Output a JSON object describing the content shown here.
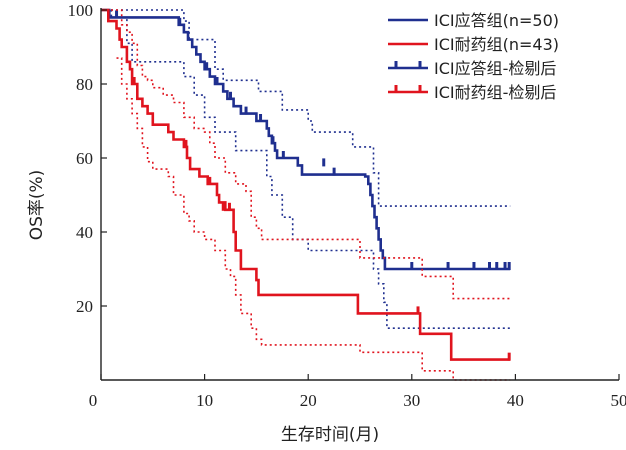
{
  "chart_data": {
    "type": "line",
    "subtype": "kaplan-meier",
    "xlabel": "生存时间(月)",
    "ylabel": "OS率(%)",
    "xlim": [
      0,
      50
    ],
    "ylim": [
      0,
      100
    ],
    "xticks": [
      0,
      10,
      20,
      30,
      40,
      50
    ],
    "yticks": [
      20,
      40,
      60,
      80,
      100
    ],
    "legend_position": "top-right",
    "legend": [
      {
        "label": "ICI应答组(n=50)",
        "color": "#1f2f8f",
        "style": "line"
      },
      {
        "label": "ICI耐药组(n=43)",
        "color": "#e0141e",
        "style": "line"
      },
      {
        "label": "ICI应答组-检剔后",
        "color": "#1f2f8f",
        "style": "censor"
      },
      {
        "label": "ICI耐药组-检剔后",
        "color": "#e0141e",
        "style": "censor"
      }
    ],
    "series": [
      {
        "name": "ICI应答组",
        "color": "#1f2f8f",
        "steps": [
          [
            0,
            100
          ],
          [
            0.8,
            98
          ],
          [
            7.5,
            96
          ],
          [
            8,
            94
          ],
          [
            8.4,
            92
          ],
          [
            8.8,
            90
          ],
          [
            9.2,
            88
          ],
          [
            9.6,
            86
          ],
          [
            10,
            84
          ],
          [
            10.5,
            82
          ],
          [
            11,
            80
          ],
          [
            11.8,
            78
          ],
          [
            12.2,
            76
          ],
          [
            12.8,
            74
          ],
          [
            13.5,
            72
          ],
          [
            15,
            70
          ],
          [
            16,
            68
          ],
          [
            16.2,
            66
          ],
          [
            16.5,
            64
          ],
          [
            16.8,
            62
          ],
          [
            17,
            60
          ],
          [
            19,
            58
          ],
          [
            19.4,
            55.5
          ],
          [
            25.5,
            55
          ],
          [
            25.8,
            53
          ],
          [
            26,
            50
          ],
          [
            26.2,
            47
          ],
          [
            26.4,
            44
          ],
          [
            26.6,
            41
          ],
          [
            26.8,
            38
          ],
          [
            27,
            35
          ],
          [
            27.2,
            33
          ],
          [
            27.4,
            30
          ],
          [
            39.5,
            30
          ]
        ],
        "censors": [
          [
            1.5,
            98
          ],
          [
            7.6,
            96
          ],
          [
            10.2,
            84
          ],
          [
            11.2,
            80
          ],
          [
            12.5,
            76
          ],
          [
            14,
            72
          ],
          [
            15.4,
            70
          ],
          [
            16.6,
            64
          ],
          [
            17.6,
            60
          ],
          [
            21.5,
            58
          ],
          [
            22.5,
            55.5
          ],
          [
            30,
            30
          ],
          [
            33.5,
            30
          ],
          [
            36,
            30
          ],
          [
            37.5,
            30
          ],
          [
            38.2,
            30
          ],
          [
            39,
            30
          ],
          [
            39.4,
            30
          ]
        ],
        "ci_upper": [
          [
            0,
            100
          ],
          [
            7.5,
            100
          ],
          [
            8,
            97
          ],
          [
            8.5,
            92
          ],
          [
            11,
            84
          ],
          [
            11.8,
            81
          ],
          [
            15.2,
            78
          ],
          [
            17.5,
            73
          ],
          [
            20,
            70
          ],
          [
            20.4,
            67
          ],
          [
            24,
            67
          ],
          [
            24.3,
            63
          ],
          [
            26,
            63
          ],
          [
            26.3,
            56
          ],
          [
            26.8,
            47
          ],
          [
            39.5,
            47
          ]
        ],
        "ci_lower": [
          [
            0,
            100
          ],
          [
            1,
            98
          ],
          [
            2.5,
            91
          ],
          [
            3,
            86
          ],
          [
            7.5,
            86
          ],
          [
            8,
            82
          ],
          [
            9,
            77
          ],
          [
            10,
            71
          ],
          [
            11,
            67
          ],
          [
            13,
            62
          ],
          [
            16,
            55
          ],
          [
            16.5,
            50
          ],
          [
            17.5,
            44
          ],
          [
            18.5,
            38
          ],
          [
            20,
            35
          ],
          [
            25.5,
            35
          ],
          [
            26.3,
            30
          ],
          [
            26.8,
            26
          ],
          [
            27.3,
            21
          ],
          [
            27.6,
            14
          ],
          [
            39.5,
            14
          ]
        ]
      },
      {
        "name": "ICI耐药组",
        "color": "#e0141e",
        "steps": [
          [
            0,
            100
          ],
          [
            0.7,
            97
          ],
          [
            1.5,
            95
          ],
          [
            1.8,
            92
          ],
          [
            2,
            90
          ],
          [
            2.5,
            86
          ],
          [
            2.8,
            84
          ],
          [
            3,
            80
          ],
          [
            3.5,
            76
          ],
          [
            4,
            74
          ],
          [
            4.5,
            72
          ],
          [
            5,
            69
          ],
          [
            6.5,
            67
          ],
          [
            7,
            65
          ],
          [
            8,
            63
          ],
          [
            8.3,
            60
          ],
          [
            8.6,
            57
          ],
          [
            9.5,
            55
          ],
          [
            10.3,
            53
          ],
          [
            11.2,
            50
          ],
          [
            11.4,
            48
          ],
          [
            12,
            46
          ],
          [
            12.8,
            40
          ],
          [
            13,
            35
          ],
          [
            13.5,
            30
          ],
          [
            15,
            27
          ],
          [
            15.2,
            23
          ],
          [
            24.5,
            23
          ],
          [
            24.8,
            18
          ],
          [
            30.5,
            18
          ],
          [
            30.8,
            12.5
          ],
          [
            33.5,
            12.5
          ],
          [
            33.8,
            5.5
          ],
          [
            39.5,
            5.5
          ]
        ],
        "censors": [
          [
            3.2,
            80
          ],
          [
            8.2,
            63
          ],
          [
            10.5,
            53
          ],
          [
            11.8,
            46
          ],
          [
            12.4,
            46
          ],
          [
            30.6,
            18
          ],
          [
            39.4,
            5.5
          ]
        ],
        "ci_upper": [
          [
            0,
            100
          ],
          [
            1.5,
            100
          ],
          [
            2,
            96
          ],
          [
            2.5,
            94
          ],
          [
            3,
            91
          ],
          [
            3.5,
            85
          ],
          [
            4,
            82
          ],
          [
            4.5,
            81
          ],
          [
            5,
            79
          ],
          [
            6,
            77
          ],
          [
            7,
            75
          ],
          [
            8,
            71
          ],
          [
            9,
            68
          ],
          [
            10,
            67
          ],
          [
            10.5,
            64
          ],
          [
            11,
            60
          ],
          [
            12,
            56
          ],
          [
            13,
            53
          ],
          [
            14,
            51
          ],
          [
            14.5,
            44
          ],
          [
            15,
            41
          ],
          [
            15.5,
            38
          ],
          [
            24.5,
            38
          ],
          [
            25,
            33
          ],
          [
            30.5,
            33
          ],
          [
            31,
            28
          ],
          [
            33.5,
            28
          ],
          [
            34,
            22
          ],
          [
            39.5,
            22
          ]
        ],
        "ci_lower": [
          [
            1.5,
            87
          ],
          [
            2,
            80
          ],
          [
            2.5,
            76
          ],
          [
            3,
            72
          ],
          [
            3.5,
            68
          ],
          [
            4,
            63
          ],
          [
            4.5,
            59
          ],
          [
            5,
            57
          ],
          [
            6.5,
            55
          ],
          [
            7,
            50
          ],
          [
            8,
            45
          ],
          [
            8.5,
            43
          ],
          [
            9,
            40
          ],
          [
            10,
            38
          ],
          [
            11,
            35
          ],
          [
            12,
            30
          ],
          [
            12.5,
            28
          ],
          [
            13,
            23
          ],
          [
            13.5,
            18
          ],
          [
            14.5,
            14
          ],
          [
            15,
            11
          ],
          [
            15.5,
            9.5
          ],
          [
            24.5,
            9.5
          ],
          [
            25,
            7.5
          ],
          [
            30.5,
            7.5
          ],
          [
            31,
            2.5
          ],
          [
            33.5,
            2.5
          ],
          [
            34,
            0
          ],
          [
            39.5,
            0
          ]
        ]
      }
    ]
  }
}
